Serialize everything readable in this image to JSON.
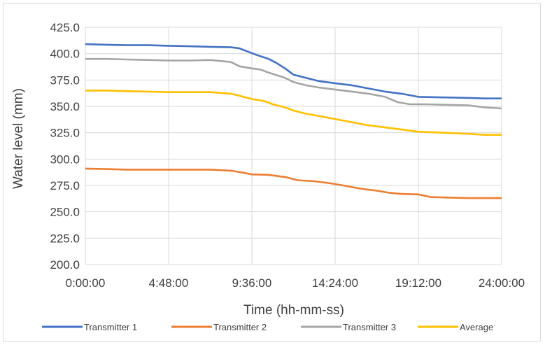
{
  "chart_data": {
    "type": "line",
    "xlabel": "Time (hh-mm-ss)",
    "ylabel": "Water level (mm)",
    "ylim": [
      200,
      425
    ],
    "yticks": [
      "200.0",
      "225.0",
      "250.0",
      "275.0",
      "300.0",
      "325.0",
      "350.0",
      "375.0",
      "400.0",
      "425.0"
    ],
    "xlim": [
      "0:00:00",
      "24:00:00"
    ],
    "xticks": [
      "0:00:00",
      "4:48:00",
      "9:36:00",
      "14:24:00",
      "19:12:00",
      "24:00:00"
    ],
    "grid": true,
    "legend_position": "bottom",
    "series": [
      {
        "name": "Transmitter 1",
        "color": "#4472C4",
        "points": [
          [
            "0:00:00",
            409
          ],
          [
            "1:12:00",
            408.5
          ],
          [
            "2:24:00",
            408
          ],
          [
            "3:36:00",
            408
          ],
          [
            "4:48:00",
            407.5
          ],
          [
            "6:00:00",
            407
          ],
          [
            "7:12:00",
            406.5
          ],
          [
            "8:24:00",
            406
          ],
          [
            "8:53:00",
            405
          ],
          [
            "9:22:00",
            402
          ],
          [
            "9:50:00",
            399
          ],
          [
            "10:34:00",
            395
          ],
          [
            "11:02:00",
            391
          ],
          [
            "11:31:00",
            386
          ],
          [
            "12:00:00",
            380
          ],
          [
            "12:43:00",
            377
          ],
          [
            "13:26:00",
            374
          ],
          [
            "14:24:00",
            372
          ],
          [
            "15:22:00",
            370
          ],
          [
            "16:19:00",
            367
          ],
          [
            "17:17:00",
            364
          ],
          [
            "18:14:00",
            362
          ],
          [
            "19:12:00",
            359
          ],
          [
            "20:38:00",
            358.5
          ],
          [
            "22:05:00",
            358
          ],
          [
            "23:02:00",
            357.5
          ],
          [
            "24:00:00",
            357.5
          ]
        ]
      },
      {
        "name": "Transmitter 2",
        "color": "#ED7D31",
        "points": [
          [
            "0:00:00",
            291
          ],
          [
            "1:12:00",
            290.5
          ],
          [
            "2:24:00",
            290
          ],
          [
            "4:48:00",
            290
          ],
          [
            "6:00:00",
            290
          ],
          [
            "7:12:00",
            290
          ],
          [
            "8:24:00",
            289
          ],
          [
            "9:07:00",
            287
          ],
          [
            "9:36:00",
            285.5
          ],
          [
            "10:34:00",
            285
          ],
          [
            "11:02:00",
            284
          ],
          [
            "11:31:00",
            283
          ],
          [
            "12:14:00",
            280
          ],
          [
            "13:12:00",
            279
          ],
          [
            "14:09:00",
            277
          ],
          [
            "14:52:00",
            275
          ],
          [
            "15:50:00",
            272
          ],
          [
            "16:48:00",
            270
          ],
          [
            "17:31:00",
            268
          ],
          [
            "18:14:00",
            267
          ],
          [
            "19:12:00",
            266.5
          ],
          [
            "19:55:00",
            264
          ],
          [
            "20:53:00",
            263.5
          ],
          [
            "22:05:00",
            263
          ],
          [
            "24:00:00",
            263
          ]
        ]
      },
      {
        "name": "Transmitter 3",
        "color": "#A5A5A5",
        "points": [
          [
            "0:00:00",
            395
          ],
          [
            "1:12:00",
            395
          ],
          [
            "2:24:00",
            394.5
          ],
          [
            "3:36:00",
            394
          ],
          [
            "4:48:00",
            393.5
          ],
          [
            "6:00:00",
            393.5
          ],
          [
            "7:12:00",
            394
          ],
          [
            "8:24:00",
            392
          ],
          [
            "8:53:00",
            388
          ],
          [
            "9:36:00",
            386
          ],
          [
            "10:05:00",
            385
          ],
          [
            "10:34:00",
            382
          ],
          [
            "11:31:00",
            377
          ],
          [
            "12:00:00",
            373
          ],
          [
            "12:43:00",
            370
          ],
          [
            "13:26:00",
            368
          ],
          [
            "14:24:00",
            366
          ],
          [
            "15:22:00",
            364
          ],
          [
            "16:19:00",
            362
          ],
          [
            "17:17:00",
            359
          ],
          [
            "18:00:00",
            354
          ],
          [
            "18:43:00",
            352
          ],
          [
            "19:41:00",
            352
          ],
          [
            "20:38:00",
            351.5
          ],
          [
            "22:05:00",
            351
          ],
          [
            "23:02:00",
            349
          ],
          [
            "24:00:00",
            348
          ]
        ]
      },
      {
        "name": "Average",
        "color": "#FFC000",
        "points": [
          [
            "0:00:00",
            365
          ],
          [
            "1:12:00",
            365
          ],
          [
            "2:24:00",
            364.5
          ],
          [
            "3:36:00",
            364
          ],
          [
            "4:48:00",
            363.5
          ],
          [
            "6:00:00",
            363.5
          ],
          [
            "7:12:00",
            363.5
          ],
          [
            "8:24:00",
            362
          ],
          [
            "8:53:00",
            360
          ],
          [
            "9:36:00",
            357
          ],
          [
            "10:19:00",
            355
          ],
          [
            "10:48:00",
            352
          ],
          [
            "11:31:00",
            349
          ],
          [
            "12:00:00",
            346
          ],
          [
            "12:43:00",
            343
          ],
          [
            "13:26:00",
            341
          ],
          [
            "14:24:00",
            338
          ],
          [
            "15:22:00",
            335
          ],
          [
            "16:19:00",
            332
          ],
          [
            "17:17:00",
            330
          ],
          [
            "18:14:00",
            328
          ],
          [
            "19:12:00",
            326
          ],
          [
            "20:38:00",
            325
          ],
          [
            "22:05:00",
            324
          ],
          [
            "23:02:00",
            323
          ],
          [
            "24:00:00",
            323
          ]
        ]
      }
    ]
  }
}
